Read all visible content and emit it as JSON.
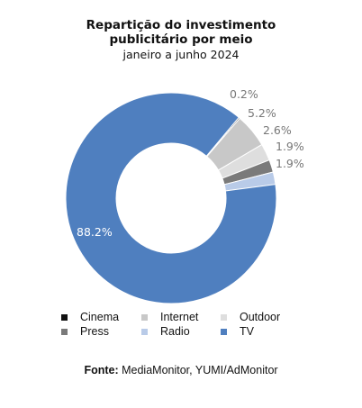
{
  "chart_data": {
    "type": "pie",
    "variant": "donut",
    "title_line1": "Repartição do investimento",
    "title_line2": "publicitário por meio",
    "subtitle": "janeiro a junho 2024",
    "slices": [
      {
        "name": "Cinema",
        "value": 0.2,
        "label": "0.2%",
        "color": "#111111"
      },
      {
        "name": "Internet",
        "value": 5.2,
        "label": "5.2%",
        "color": "#c8c8c8"
      },
      {
        "name": "Outdoor",
        "value": 2.6,
        "label": "2.6%",
        "color": "#dedede"
      },
      {
        "name": "Press",
        "value": 1.9,
        "label": "1.9%",
        "color": "#7a7a7a"
      },
      {
        "name": "Radio",
        "value": 1.9,
        "label": "1.9%",
        "color": "#b9cbe8"
      },
      {
        "name": "TV",
        "value": 88.2,
        "label": "88.2%",
        "color": "#4f7fbf"
      }
    ],
    "legend_position": "bottom"
  },
  "source": {
    "prefix": "Fonte:",
    "text": "MediaMonitor, YUMI/AdMonitor"
  }
}
